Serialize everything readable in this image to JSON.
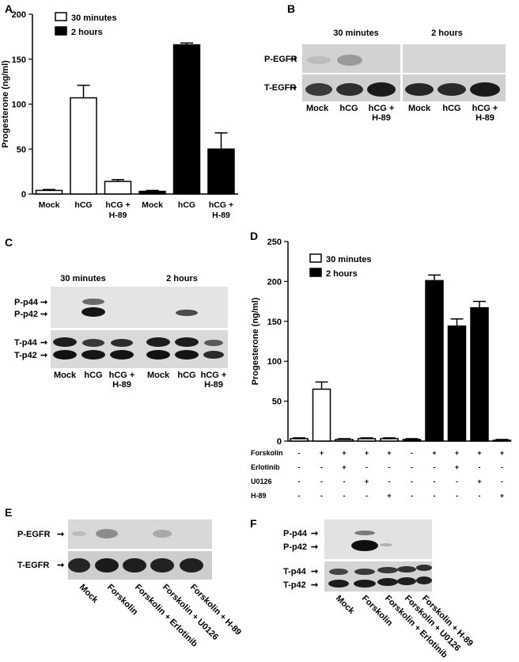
{
  "panels": {
    "A": "A",
    "B": "B",
    "C": "C",
    "D": "D",
    "E": "E",
    "F": "F"
  },
  "colors": {
    "open": "#ffffff",
    "filled": "#000000",
    "blot_bg": "#dcdcdc",
    "band": "#1a1a1a"
  },
  "chart_data": [
    {
      "panel": "A",
      "type": "bar",
      "ylabel": "Progesterone (ng/ml)",
      "ylim": [
        0,
        200
      ],
      "yticks": [
        0,
        50,
        100,
        150,
        200
      ],
      "legend": [
        "30 minutes",
        "2 hours"
      ],
      "legend_position": "top-left",
      "categories": [
        "Mock",
        "hCG",
        "hCG + H-89",
        "Mock",
        "hCG",
        "hCG + H-89"
      ],
      "category_lines": [
        [
          "Mock"
        ],
        [
          "hCG"
        ],
        [
          "hCG +",
          "H-89"
        ],
        [
          "Mock"
        ],
        [
          "hCG"
        ],
        [
          "hCG +",
          "H-89"
        ]
      ],
      "series": [
        {
          "name": "30 minutes",
          "values": [
            4,
            107,
            14,
            null,
            null,
            null
          ],
          "errors": [
            1,
            14,
            2,
            null,
            null,
            null
          ]
        },
        {
          "name": "2 hours",
          "values": [
            null,
            null,
            null,
            3,
            166,
            50
          ],
          "errors": [
            null,
            null,
            null,
            1,
            2,
            18
          ]
        }
      ]
    },
    {
      "panel": "D",
      "type": "bar",
      "ylabel": "Progesterone (ng/ml)",
      "ylim": [
        0,
        250
      ],
      "yticks": [
        0,
        50,
        100,
        150,
        200,
        250
      ],
      "legend": [
        "30 minutes",
        "2 hours"
      ],
      "legend_position": "top-left",
      "treatments": [
        "Forskolin",
        "Erlotinib",
        "U0126",
        "H-89"
      ],
      "treatment_matrix": [
        [
          "-",
          "+",
          "+",
          "+",
          "+",
          "-",
          "+",
          "+",
          "+",
          "+"
        ],
        [
          "-",
          "-",
          "+",
          "-",
          "-",
          "-",
          "-",
          "+",
          "-",
          "-"
        ],
        [
          "-",
          "-",
          "-",
          "+",
          "-",
          "-",
          "-",
          "-",
          "+",
          "-"
        ],
        [
          "-",
          "-",
          "-",
          "-",
          "+",
          "-",
          "-",
          "-",
          "-",
          "+"
        ]
      ],
      "series": [
        {
          "name": "30 minutes",
          "values": [
            3,
            65,
            2,
            3,
            3,
            null,
            null,
            null,
            null,
            null
          ],
          "errors": [
            1,
            9,
            1,
            1,
            1,
            null,
            null,
            null,
            null,
            null
          ]
        },
        {
          "name": "2 hours",
          "values": [
            null,
            null,
            null,
            null,
            null,
            2,
            201,
            144,
            167,
            1
          ],
          "errors": [
            null,
            null,
            null,
            null,
            null,
            1,
            7,
            9,
            8,
            1
          ]
        }
      ]
    }
  ],
  "blots": {
    "B": {
      "group_labels": [
        "30 minutes",
        "2 hours"
      ],
      "rows": [
        "P-EGFR",
        "T-EGFR"
      ],
      "lanes": [
        [
          "Mock"
        ],
        [
          "hCG"
        ],
        [
          "hCG +",
          "H-89"
        ],
        [
          "Mock"
        ],
        [
          "hCG"
        ],
        [
          "hCG +",
          "H-89"
        ]
      ]
    },
    "C": {
      "group_labels": [
        "30 minutes",
        "2 hours"
      ],
      "rows": [
        "P-p44",
        "P-p42",
        "T-p44",
        "T-p42"
      ],
      "lanes": [
        [
          "Mock"
        ],
        [
          "hCG"
        ],
        [
          "hCG +",
          "H-89"
        ],
        [
          "Mock"
        ],
        [
          "hCG"
        ],
        [
          "hCG +",
          "H-89"
        ]
      ]
    },
    "E": {
      "rows": [
        "P-EGFR",
        "T-EGFR"
      ],
      "lanes": [
        "Mock",
        "Forskolin",
        "Forskolin + Erlotinib",
        "Forskolin + U0126",
        "Forskolin + H-89"
      ]
    },
    "F": {
      "rows": [
        "P-p44",
        "P-p42",
        "T-p44",
        "T-p42"
      ],
      "lanes": [
        "Mock",
        "Forskolin",
        "Forskolin + Erlotinib",
        "Forskolin + U0126",
        "Forskolin + H-89"
      ]
    }
  }
}
